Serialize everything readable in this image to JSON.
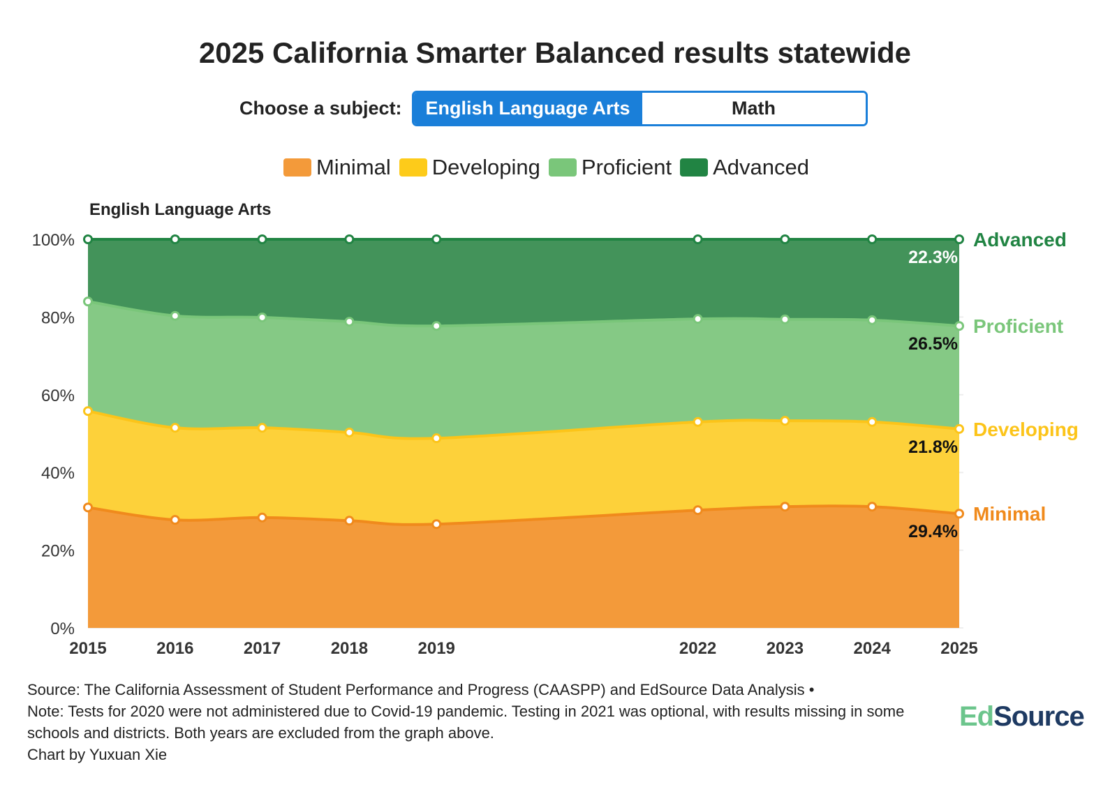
{
  "title": "2025 California Smarter Balanced results statewide",
  "chooser": {
    "label": "Choose a subject:",
    "options": [
      "English Language Arts",
      "Math"
    ],
    "selected": "English Language Arts"
  },
  "chart_data": {
    "type": "area",
    "stacked": true,
    "subtitle": "English Language Arts",
    "x": [
      2015,
      2016,
      2017,
      2018,
      2019,
      2022,
      2023,
      2024,
      2025
    ],
    "x_tick_labels": [
      "2015",
      "2016",
      "2017",
      "2018",
      "2019",
      "2022",
      "2023",
      "2024",
      "2025"
    ],
    "y_tick_labels": [
      "0%",
      "20%",
      "40%",
      "60%",
      "80%",
      "100%"
    ],
    "ylim": [
      0,
      100
    ],
    "series": [
      {
        "name": "Minimal",
        "color": "#f39a3a",
        "line": "#f08a1c",
        "values": [
          31.0,
          27.8,
          28.4,
          27.6,
          26.7,
          30.3,
          31.2,
          31.2,
          29.4
        ],
        "end_label": "29.4%"
      },
      {
        "name": "Developing",
        "color": "#fdd13a",
        "line": "#fcc419",
        "values": [
          24.8,
          23.7,
          23.1,
          22.7,
          22.1,
          22.7,
          22.1,
          21.8,
          21.8
        ],
        "end_label": "21.8%"
      },
      {
        "name": "Proficient",
        "color": "#85c985",
        "line": "#7ac67a",
        "values": [
          28.2,
          28.8,
          28.4,
          28.5,
          28.9,
          26.5,
          26.1,
          26.2,
          26.5
        ],
        "end_label": "26.5%"
      },
      {
        "name": "Advanced",
        "color": "#43935a",
        "line": "#218443",
        "values": [
          16.0,
          19.7,
          20.1,
          21.2,
          22.3,
          20.5,
          20.6,
          20.8,
          22.3
        ],
        "end_label": "22.3%"
      }
    ],
    "legend": [
      "Minimal",
      "Developing",
      "Proficient",
      "Advanced"
    ],
    "legend_placement": "top-center"
  },
  "footer": {
    "source": "Source: The California Assessment of Student Performance and Progress (CAASPP) and EdSource Data Analysis •",
    "note": "Note: Tests for 2020 were not administered due to Covid-19 pandemic. Testing in 2021 was optional, with results missing in some schools and districts. Both years are excluded from the graph above.",
    "credit": "Chart by Yuxuan Xie"
  },
  "logo": {
    "part1": "Ed",
    "part2": "Source"
  }
}
